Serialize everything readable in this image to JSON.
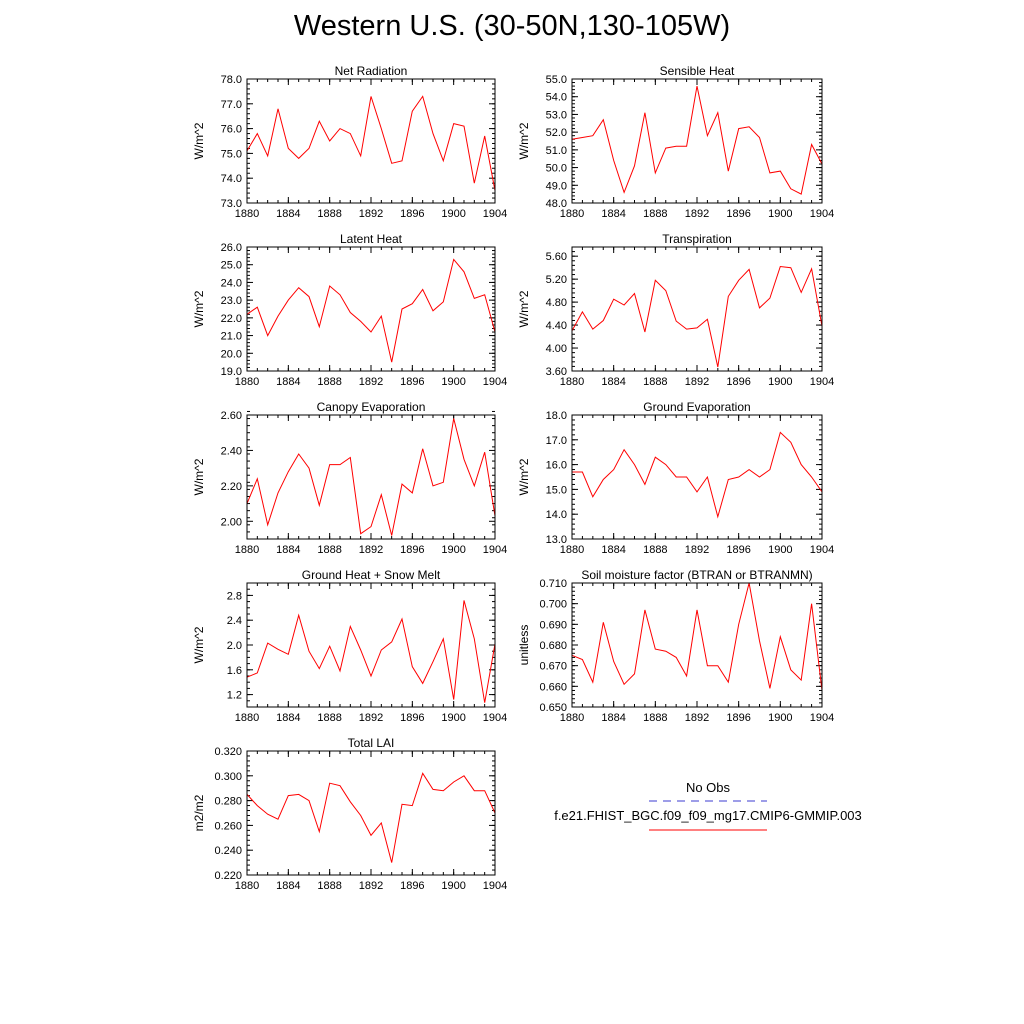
{
  "title": "Western U.S. (30-50N,130-105W)",
  "legend": {
    "entries": [
      {
        "label": "No Obs",
        "color": "#3b3bd1",
        "dash": true
      },
      {
        "label": "f.e21.FHIST_BGC.f09_f09_mg17.CMIP6-GMMIP.003",
        "color": "#ff0000",
        "dash": false
      }
    ]
  },
  "chart_data": [
    {
      "type": "line",
      "title": "Net Radiation",
      "ylabel": "W/m^2",
      "xlim": [
        1880,
        1904
      ],
      "ylim": [
        73.0,
        78.0
      ],
      "xticks": [
        1880,
        1884,
        1888,
        1892,
        1896,
        1900,
        1904
      ],
      "yticks": [
        73.0,
        74.0,
        75.0,
        76.0,
        77.0,
        78.0
      ],
      "ytick_labels": [
        "73.0",
        "74.0",
        "75.0",
        "76.0",
        "77.0",
        "78.0"
      ],
      "yminor": 0.2,
      "x": [
        1880,
        1881,
        1882,
        1883,
        1884,
        1885,
        1886,
        1887,
        1888,
        1889,
        1890,
        1891,
        1892,
        1893,
        1894,
        1895,
        1896,
        1897,
        1898,
        1899,
        1900,
        1901,
        1902,
        1903,
        1904
      ],
      "series": [
        {
          "color": "#ff0000",
          "values": [
            75.1,
            75.8,
            74.9,
            76.8,
            75.2,
            74.8,
            75.2,
            76.3,
            75.5,
            76.0,
            75.8,
            74.9,
            77.3,
            76.0,
            74.6,
            74.7,
            76.7,
            77.3,
            75.8,
            74.7,
            76.2,
            76.1,
            73.8,
            75.7,
            73.5
          ]
        }
      ]
    },
    {
      "type": "line",
      "title": "Sensible Heat",
      "ylabel": "W/m^2",
      "xlim": [
        1880,
        1904
      ],
      "ylim": [
        48.0,
        55.0
      ],
      "xticks": [
        1880,
        1884,
        1888,
        1892,
        1896,
        1900,
        1904
      ],
      "yticks": [
        48.0,
        49.0,
        50.0,
        51.0,
        52.0,
        53.0,
        54.0,
        55.0
      ],
      "ytick_labels": [
        "48.0",
        "49.0",
        "50.0",
        "51.0",
        "52.0",
        "53.0",
        "54.0",
        "55.0"
      ],
      "yminor": 0.2,
      "x": [
        1880,
        1881,
        1882,
        1883,
        1884,
        1885,
        1886,
        1887,
        1888,
        1889,
        1890,
        1891,
        1892,
        1893,
        1894,
        1895,
        1896,
        1897,
        1898,
        1899,
        1900,
        1901,
        1902,
        1903,
        1904
      ],
      "series": [
        {
          "color": "#ff0000",
          "values": [
            51.6,
            51.7,
            51.8,
            52.7,
            50.4,
            48.6,
            50.1,
            53.1,
            49.7,
            51.1,
            51.2,
            51.2,
            54.6,
            51.8,
            53.1,
            49.8,
            52.2,
            52.3,
            51.7,
            49.7,
            49.8,
            48.8,
            48.5,
            51.3,
            50.2
          ]
        }
      ]
    },
    {
      "type": "line",
      "title": "Latent Heat",
      "ylabel": "W/m^2",
      "xlim": [
        1880,
        1904
      ],
      "ylim": [
        19.0,
        26.0
      ],
      "xticks": [
        1880,
        1884,
        1888,
        1892,
        1896,
        1900,
        1904
      ],
      "yticks": [
        19.0,
        20.0,
        21.0,
        22.0,
        23.0,
        24.0,
        25.0,
        26.0
      ],
      "ytick_labels": [
        "19.0",
        "20.0",
        "21.0",
        "22.0",
        "23.0",
        "24.0",
        "25.0",
        "26.0"
      ],
      "yminor": 0.2,
      "x": [
        1880,
        1881,
        1882,
        1883,
        1884,
        1885,
        1886,
        1887,
        1888,
        1889,
        1890,
        1891,
        1892,
        1893,
        1894,
        1895,
        1896,
        1897,
        1898,
        1899,
        1900,
        1901,
        1902,
        1903,
        1904
      ],
      "series": [
        {
          "color": "#ff0000",
          "values": [
            22.2,
            22.6,
            21.0,
            22.1,
            23.0,
            23.7,
            23.2,
            21.5,
            23.8,
            23.3,
            22.3,
            21.8,
            21.2,
            22.1,
            19.5,
            22.5,
            22.8,
            23.6,
            22.4,
            22.9,
            25.3,
            24.6,
            23.1,
            23.3,
            21.2
          ]
        }
      ]
    },
    {
      "type": "line",
      "title": "Transpiration",
      "ylabel": "W/m^2",
      "xlim": [
        1880,
        1904
      ],
      "ylim": [
        3.6,
        5.76
      ],
      "xticks": [
        1880,
        1884,
        1888,
        1892,
        1896,
        1900,
        1904
      ],
      "yticks": [
        3.6,
        4.0,
        4.4,
        4.8,
        5.2,
        5.6
      ],
      "ytick_labels": [
        "3.60",
        "4.00",
        "4.40",
        "4.80",
        "5.20",
        "5.60"
      ],
      "yminor": 0.08,
      "x": [
        1880,
        1881,
        1882,
        1883,
        1884,
        1885,
        1886,
        1887,
        1888,
        1889,
        1890,
        1891,
        1892,
        1893,
        1894,
        1895,
        1896,
        1897,
        1898,
        1899,
        1900,
        1901,
        1902,
        1903,
        1904
      ],
      "series": [
        {
          "color": "#ff0000",
          "values": [
            4.3,
            4.63,
            4.33,
            4.48,
            4.85,
            4.75,
            4.95,
            4.28,
            5.18,
            5.0,
            4.47,
            4.33,
            4.35,
            4.5,
            3.67,
            4.9,
            5.18,
            5.37,
            4.7,
            4.87,
            5.42,
            5.4,
            4.97,
            5.38,
            4.38
          ]
        }
      ]
    },
    {
      "type": "line",
      "title": "Canopy Evaporation",
      "ylabel": "W/m^2",
      "xlim": [
        1880,
        1904
      ],
      "ylim": [
        1.9,
        2.6
      ],
      "xticks": [
        1880,
        1884,
        1888,
        1892,
        1896,
        1900,
        1904
      ],
      "yticks": [
        2.0,
        2.2,
        2.4,
        2.6
      ],
      "ytick_labels": [
        "2.00",
        "2.20",
        "2.40",
        "2.60"
      ],
      "yminor": 0.04,
      "x": [
        1880,
        1881,
        1882,
        1883,
        1884,
        1885,
        1886,
        1887,
        1888,
        1889,
        1890,
        1891,
        1892,
        1893,
        1894,
        1895,
        1896,
        1897,
        1898,
        1899,
        1900,
        1901,
        1902,
        1903,
        1904
      ],
      "series": [
        {
          "color": "#ff0000",
          "values": [
            2.1,
            2.24,
            1.98,
            2.16,
            2.28,
            2.38,
            2.3,
            2.09,
            2.32,
            2.32,
            2.36,
            1.93,
            1.97,
            2.15,
            1.92,
            2.21,
            2.16,
            2.41,
            2.2,
            2.22,
            2.58,
            2.35,
            2.2,
            2.39,
            2.03
          ]
        }
      ]
    },
    {
      "type": "line",
      "title": "Ground Evaporation",
      "ylabel": "W/m^2",
      "xlim": [
        1880,
        1904
      ],
      "ylim": [
        13.0,
        18.0
      ],
      "xticks": [
        1880,
        1884,
        1888,
        1892,
        1896,
        1900,
        1904
      ],
      "yticks": [
        13.0,
        14.0,
        15.0,
        16.0,
        17.0,
        18.0
      ],
      "ytick_labels": [
        "13.0",
        "14.0",
        "15.0",
        "16.0",
        "17.0",
        "18.0"
      ],
      "yminor": 0.2,
      "x": [
        1880,
        1881,
        1882,
        1883,
        1884,
        1885,
        1886,
        1887,
        1888,
        1889,
        1890,
        1891,
        1892,
        1893,
        1894,
        1895,
        1896,
        1897,
        1898,
        1899,
        1900,
        1901,
        1902,
        1903,
        1904
      ],
      "series": [
        {
          "color": "#ff0000",
          "values": [
            15.7,
            15.7,
            14.7,
            15.4,
            15.8,
            16.6,
            16.0,
            15.2,
            16.3,
            16.0,
            15.5,
            15.5,
            14.9,
            15.5,
            13.9,
            15.4,
            15.5,
            15.8,
            15.5,
            15.8,
            17.3,
            16.9,
            16.0,
            15.5,
            14.9
          ]
        }
      ]
    },
    {
      "type": "line",
      "title": "Ground Heat + Snow Melt",
      "ylabel": "W/m^2",
      "xlim": [
        1880,
        1904
      ],
      "ylim": [
        1.0,
        3.0
      ],
      "xticks": [
        1880,
        1884,
        1888,
        1892,
        1896,
        1900,
        1904
      ],
      "yticks": [
        1.2,
        1.6,
        2.0,
        2.4,
        2.8
      ],
      "ytick_labels": [
        "1.2",
        "1.6",
        "2.0",
        "2.4",
        "2.8"
      ],
      "yminor": 0.1,
      "x": [
        1880,
        1881,
        1882,
        1883,
        1884,
        1885,
        1886,
        1887,
        1888,
        1889,
        1890,
        1891,
        1892,
        1893,
        1894,
        1895,
        1896,
        1897,
        1898,
        1899,
        1900,
        1901,
        1902,
        1903,
        1904
      ],
      "series": [
        {
          "color": "#ff0000",
          "values": [
            1.48,
            1.55,
            2.03,
            1.93,
            1.85,
            2.48,
            1.9,
            1.62,
            1.98,
            1.58,
            2.3,
            1.92,
            1.5,
            1.92,
            2.05,
            2.42,
            1.65,
            1.38,
            1.73,
            2.1,
            1.12,
            2.72,
            2.1,
            1.07,
            2.02
          ]
        }
      ]
    },
    {
      "type": "line",
      "title": "Soil moisture factor (BTRAN or BTRANMN)",
      "ylabel": "unitless",
      "xlim": [
        1880,
        1904
      ],
      "ylim": [
        0.65,
        0.71
      ],
      "xticks": [
        1880,
        1884,
        1888,
        1892,
        1896,
        1900,
        1904
      ],
      "yticks": [
        0.65,
        0.66,
        0.67,
        0.68,
        0.69,
        0.7,
        0.71
      ],
      "ytick_labels": [
        "0.650",
        "0.660",
        "0.670",
        "0.680",
        "0.690",
        "0.700",
        "0.710"
      ],
      "yminor": 0.002,
      "x": [
        1880,
        1881,
        1882,
        1883,
        1884,
        1885,
        1886,
        1887,
        1888,
        1889,
        1890,
        1891,
        1892,
        1893,
        1894,
        1895,
        1896,
        1897,
        1898,
        1899,
        1900,
        1901,
        1902,
        1903,
        1904
      ],
      "series": [
        {
          "color": "#ff0000",
          "values": [
            0.675,
            0.673,
            0.662,
            0.691,
            0.672,
            0.661,
            0.666,
            0.697,
            0.678,
            0.677,
            0.674,
            0.665,
            0.697,
            0.67,
            0.67,
            0.662,
            0.69,
            0.71,
            0.682,
            0.659,
            0.684,
            0.668,
            0.663,
            0.7,
            0.658
          ]
        }
      ]
    },
    {
      "type": "line",
      "title": "Total LAI",
      "ylabel": "m2/m2",
      "xlim": [
        1880,
        1904
      ],
      "ylim": [
        0.22,
        0.32
      ],
      "xticks": [
        1880,
        1884,
        1888,
        1892,
        1896,
        1900,
        1904
      ],
      "yticks": [
        0.22,
        0.24,
        0.26,
        0.28,
        0.3,
        0.32
      ],
      "ytick_labels": [
        "0.220",
        "0.240",
        "0.260",
        "0.280",
        "0.300",
        "0.320"
      ],
      "yminor": 0.004,
      "x": [
        1880,
        1881,
        1882,
        1883,
        1884,
        1885,
        1886,
        1887,
        1888,
        1889,
        1890,
        1891,
        1892,
        1893,
        1894,
        1895,
        1896,
        1897,
        1898,
        1899,
        1900,
        1901,
        1902,
        1903,
        1904
      ],
      "series": [
        {
          "color": "#ff0000",
          "values": [
            0.285,
            0.276,
            0.269,
            0.265,
            0.284,
            0.285,
            0.28,
            0.255,
            0.294,
            0.292,
            0.279,
            0.268,
            0.252,
            0.262,
            0.23,
            0.277,
            0.276,
            0.302,
            0.289,
            0.288,
            0.295,
            0.3,
            0.288,
            0.288,
            0.27
          ]
        }
      ]
    }
  ]
}
